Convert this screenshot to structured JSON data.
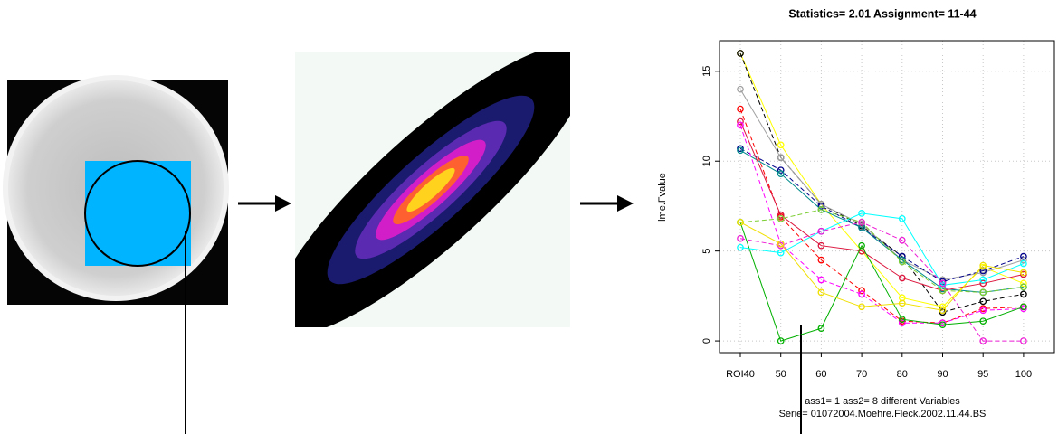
{
  "chart_data": {
    "type": "line",
    "title": "Statistics= 2.01 Assignment= 11-44",
    "y_label": "lme.Fvalue",
    "annotations": [
      "ass1= 1 ass2= 8 different Variables",
      "Serie= 01072004.Moehre.Fleck.2002.11.44.BS"
    ],
    "categories": [
      "ROI40",
      "50",
      "60",
      "70",
      "80",
      "90",
      "95",
      "100"
    ],
    "ylim": [
      -0.65,
      16.7
    ],
    "yticks": [
      0,
      5,
      10,
      15
    ],
    "grid": true,
    "series": [
      {
        "color": "#ffff00",
        "values": [
          16,
          10.9,
          7.6,
          5,
          2.4,
          1.9,
          4.1,
          3.2
        ]
      },
      {
        "color": "#000000",
        "values": [
          16,
          10.2,
          7.6,
          6.4,
          4.7,
          1.6,
          2.2,
          2.6
        ]
      },
      {
        "color": "#a0a0a0",
        "values": [
          14,
          10.2,
          7.6,
          6.5,
          4.5,
          3.4,
          3.8,
          4.5
        ]
      },
      {
        "color": "#00008b",
        "values": [
          10.7,
          9.5,
          7.5,
          6.3,
          4.7,
          3.3,
          3.9,
          4.7
        ]
      },
      {
        "color": "#008b8b",
        "values": [
          10.6,
          9.3,
          7.3,
          6.3,
          4.5,
          2.9,
          2.7,
          3.0
        ]
      },
      {
        "color": "#ff0000",
        "values": [
          12.9,
          6.9,
          4.5,
          2.8,
          1.1,
          1.0,
          1.8,
          1.9
        ]
      },
      {
        "color": "#dc143c",
        "values": [
          12.2,
          7.0,
          5.3,
          5.0,
          3.5,
          2.8,
          3.2,
          3.7
        ]
      },
      {
        "color": "#ff00ff",
        "values": [
          12.0,
          5.4,
          3.4,
          2.6,
          1.0,
          1.0,
          1.7,
          1.8
        ]
      },
      {
        "color": "#00b000",
        "values": [
          6.6,
          0,
          0.7,
          5.3,
          1.2,
          0.9,
          1.1,
          1.9
        ]
      },
      {
        "color": "#7ccd32",
        "values": [
          6.6,
          6.8,
          7.3,
          6.6,
          4.4,
          2.8,
          2.7,
          3.0
        ]
      },
      {
        "color": "#00ffff",
        "values": [
          5.2,
          4.9,
          6.1,
          7.1,
          6.8,
          3.1,
          3.4,
          4.3
        ]
      },
      {
        "color": "#ee1bd6",
        "values": [
          5.7,
          5.3,
          6.1,
          6.6,
          5.6,
          3.2,
          0,
          0
        ]
      },
      {
        "color": "#f0e000",
        "values": [
          6.6,
          5.4,
          2.7,
          1.9,
          2.1,
          1.7,
          4.2,
          3.8
        ]
      }
    ]
  }
}
